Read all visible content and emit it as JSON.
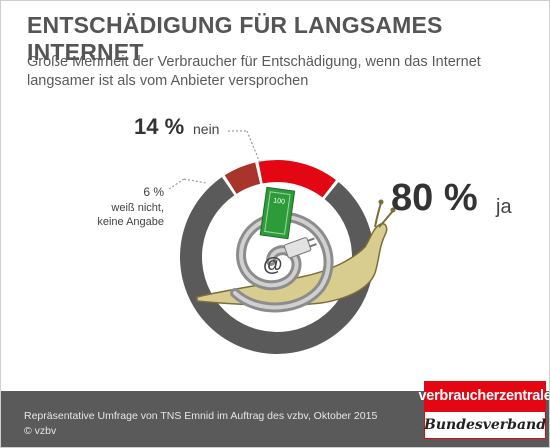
{
  "title": "ENTSCHÄDIGUNG FÜR LANGSAMES INTERNET",
  "subtitle": "Große Mehrheit der Verbraucher für Entschädigung, wenn das Internet langsamer ist als vom Anbieter versprochen",
  "chart_data": {
    "type": "pie",
    "variant": "donut",
    "categories": [
      "ja",
      "nein",
      "weiß nicht, keine Angabe"
    ],
    "values": [
      80,
      14,
      6
    ],
    "unit": "%",
    "value_labels": [
      "80 %",
      "14 %",
      "6 %"
    ],
    "colors": [
      "#5a5a5a",
      "#e30613",
      "#a8342c"
    ],
    "legend": "none"
  },
  "labels": {
    "no_pct": "14 %",
    "no_word": "nein",
    "dk_pct": "6 %",
    "dk_word_line1": "weiß nicht,",
    "dk_word_line2": "keine Angabe",
    "yes_pct": "80 %",
    "yes_word": "ja"
  },
  "illustration": {
    "banknote_text": "100",
    "at_symbol": "@"
  },
  "footer": {
    "source": "Repräsentative Umfrage von TNS Emnid im Auftrag des vzbv, Oktober 2015",
    "copyright": "© vzbv"
  },
  "logo": {
    "line1": "verbraucherzentrale",
    "line2": "Bundesverband"
  }
}
